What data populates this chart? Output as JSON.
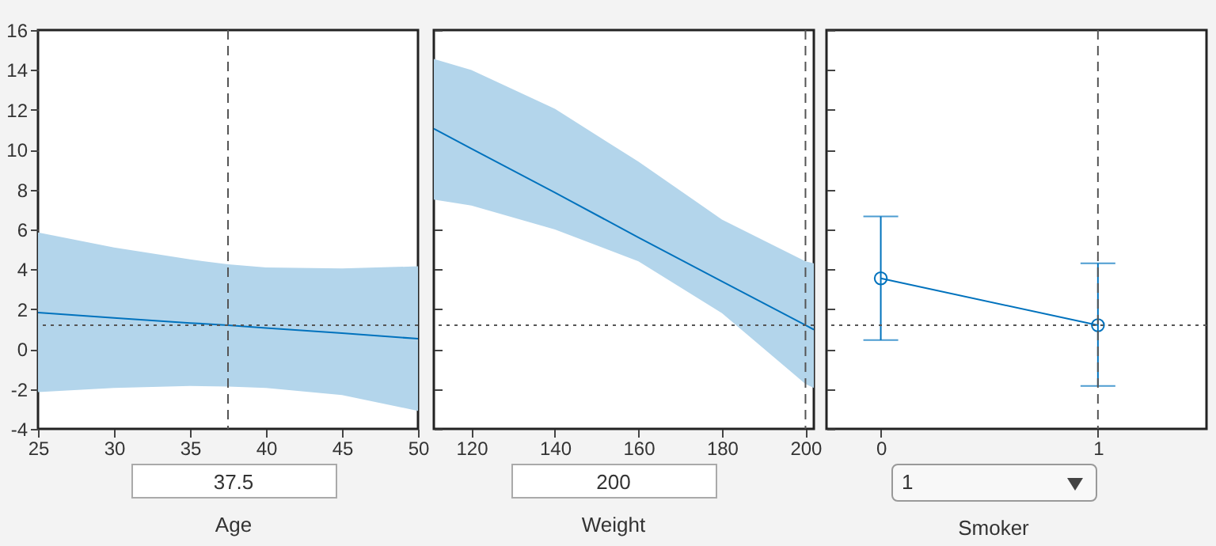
{
  "chart_data": [
    {
      "type": "line",
      "xlabel": "Age",
      "annotations": [
        "37.5"
      ],
      "x": [
        25,
        30,
        35,
        37.5,
        40,
        45,
        50
      ],
      "series": [
        {
          "color": "#0072bd",
          "values": [
            1.83,
            1.57,
            1.31,
            1.2,
            1.06,
            0.8,
            0.52
          ],
          "lower": [
            -2.15,
            -1.95,
            -1.85,
            -1.88,
            -1.95,
            -2.3,
            -3.1
          ],
          "upper": [
            5.85,
            5.1,
            4.5,
            4.25,
            4.1,
            4.05,
            4.15
          ]
        }
      ],
      "xlim": [
        25,
        50
      ],
      "xticks": [
        25,
        30,
        35,
        40,
        45,
        50
      ],
      "ylim": [
        -4,
        16
      ],
      "yticks": [
        -4,
        -2,
        0,
        2,
        4,
        6,
        8,
        10,
        12,
        14,
        16
      ],
      "ref_lines": [
        {
          "axis": "x",
          "value": 37.5,
          "line_style": "dashed",
          "color": "#555555"
        },
        {
          "axis": "y",
          "value": 1.2,
          "line_style": "dotted",
          "color": "#555555"
        }
      ],
      "grid": false
    },
    {
      "type": "line",
      "xlabel": "Weight",
      "annotations": [
        "200"
      ],
      "x": [
        111,
        120,
        140,
        160,
        180,
        200,
        202
      ],
      "series": [
        {
          "color": "#0072bd",
          "values": [
            11.05,
            10.05,
            7.85,
            5.6,
            3.4,
            1.2,
            0.98
          ],
          "lower": [
            7.5,
            7.2,
            6.0,
            4.4,
            1.8,
            -1.75,
            -1.95
          ],
          "upper": [
            14.55,
            14.0,
            12.05,
            9.4,
            6.5,
            4.4,
            4.3
          ]
        }
      ],
      "xlim": [
        111,
        202
      ],
      "xticks": [
        120,
        140,
        160,
        180,
        200
      ],
      "ylim": [
        -4,
        16
      ],
      "yticks": [
        -4,
        -2,
        0,
        2,
        4,
        6,
        8,
        10,
        12,
        14,
        16
      ],
      "tick_labels": "x",
      "ref_lines": [
        {
          "axis": "x",
          "value": 200,
          "line_style": "dashed",
          "color": "#555555"
        },
        {
          "axis": "y",
          "value": 1.2,
          "line_style": "dotted",
          "color": "#555555"
        }
      ],
      "grid": false
    },
    {
      "type": "line",
      "xlabel": "Smoker",
      "annotations": [
        "1"
      ],
      "x": [
        0,
        1
      ],
      "marker": "circle",
      "series": [
        {
          "color": "#0072bd",
          "values": [
            3.55,
            1.2
          ],
          "errors": [
            [
              0.45,
              6.65
            ],
            [
              -1.85,
              4.3
            ]
          ]
        }
      ],
      "xlim": [
        -0.25,
        1.5
      ],
      "xticks": [
        0,
        1
      ],
      "ylim": [
        -4,
        16
      ],
      "yticks": [
        -4,
        -2,
        0,
        2,
        4,
        6,
        8,
        10,
        12,
        14,
        16
      ],
      "tick_labels": "x",
      "ref_lines": [
        {
          "axis": "x",
          "value": 1,
          "line_style": "dashed",
          "color": "#555555"
        },
        {
          "axis": "y",
          "value": 1.2,
          "line_style": "dotted",
          "color": "#555555"
        }
      ],
      "grid": false
    }
  ]
}
